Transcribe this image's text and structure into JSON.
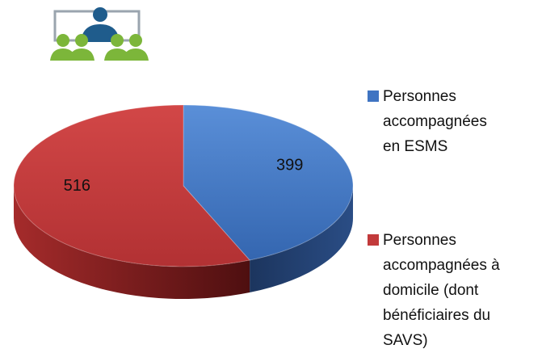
{
  "chart_data": {
    "type": "pie3d",
    "categories": [
      "Personnes accompagnées en ESMS",
      "Personnes accompagnées à domicile (dont bénéficiaires du SAVS)"
    ],
    "values": [
      399,
      516
    ],
    "colors": [
      "#3f74c2",
      "#c23a3b"
    ],
    "legend": "right"
  }
}
